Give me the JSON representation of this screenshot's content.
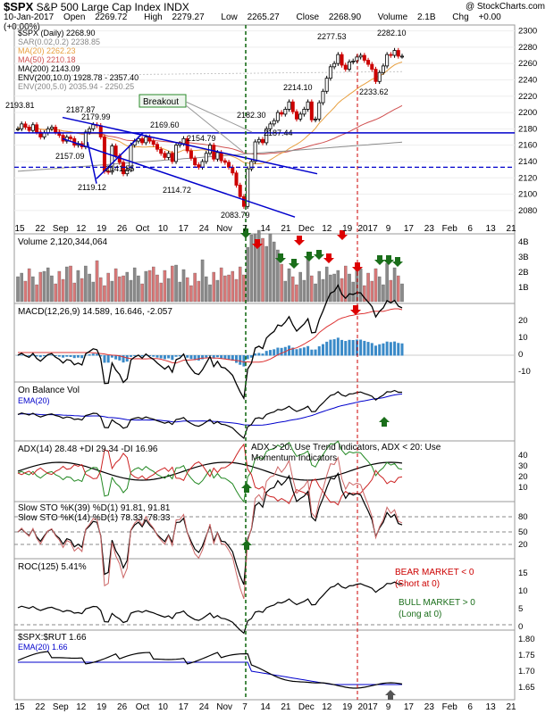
{
  "header": {
    "symbol": "$SPX",
    "name": "S&P 500 Large Cap Index INDX",
    "date": "10-Jan-2017",
    "open_label": "Open",
    "open": "2269.72",
    "high_label": "High",
    "high": "2279.27",
    "low_label": "Low",
    "low": "2265.27",
    "close_label": "Close",
    "close": "2268.90",
    "volume_label": "Volume",
    "volume": "2.1B",
    "chg_label": "Chg",
    "chg": "+0.00 (+0.00%)",
    "watermark": "@ StockCharts.com"
  },
  "colors": {
    "up": "#000000",
    "down": "#cc0000",
    "blue": "#0000cc",
    "green_arrow": "#1a6e1a",
    "red_arrow": "#dd0000",
    "volume_bar": "#d87878",
    "volume_bar_up": "#8a8a8a",
    "ma20": "#e8a040",
    "ma50": "#d05050",
    "ma200": "#8c8c8c",
    "hist": "#3a8ac8"
  },
  "x_axis_labels": [
    "15",
    "22",
    "Sep",
    "12",
    "19",
    "26",
    "Oct",
    "10",
    "17",
    "24",
    "Nov",
    "7",
    "14",
    "21",
    "Dec",
    "12",
    "19",
    "2017",
    "9",
    "17",
    "23",
    "Feb",
    "6",
    "13",
    "21"
  ],
  "panels": {
    "price": {
      "legend": [
        "$SPX (Daily) 2268.90",
        "SAR(0.02,0.2) 2238.85",
        "MA(20) 2262.23",
        "MA(50) 2210.18",
        "MA(200) 2143.09",
        "ENV(200,10.0) 1928.78 - 2357.40",
        "ENV(200,5.0) 2035.94 - 2250.25"
      ],
      "y_ticks": [
        "2300",
        "2280",
        "2260",
        "2240",
        "2220",
        "2200",
        "2180",
        "2160",
        "2140",
        "2120",
        "2100",
        "2080"
      ],
      "annotations": [
        "2193.81",
        "2187.87",
        "2179.99",
        "2169.60",
        "2157.09",
        "2141.55",
        "2119.12",
        "2154.79",
        "2114.72",
        "2083.79",
        "2182.30",
        "2187.44",
        "2214.10",
        "2277.53",
        "2233.62",
        "2282.10"
      ],
      "callout": "Breakout"
    },
    "volume": {
      "label": "Volume 2,120,344,064",
      "y_ticks": [
        "4B",
        "3B",
        "2B",
        "1B"
      ]
    },
    "macd": {
      "label": "MACD(12,26,9) 14.589, 16.646, -2.057",
      "y_ticks": [
        "20",
        "10",
        "0",
        "-10"
      ]
    },
    "obv": {
      "label": "On Balance Vol",
      "ema_label": "EMA(20)"
    },
    "adx": {
      "label": "ADX(14) 28.48 +DI 29.34 -DI 16.96",
      "note": "ADX > 20: Use Trend Indicators, ADX < 20: Use Momentum Indicators",
      "y_ticks": [
        "40",
        "30",
        "20",
        "10"
      ]
    },
    "sto": {
      "label1": "Slow STO %K(39) %D(1) 91.81, 91.81",
      "label2": "Slow STO %K(14) %D(1) 78.33, 78.33",
      "y_ticks": [
        "80",
        "50",
        "20"
      ]
    },
    "roc": {
      "label": "ROC(125) 5.41%",
      "bear": "BEAR MARKET < 0",
      "bear2": "(Short at 0)",
      "bull": "BULL MARKET > 0",
      "bull2": "(Long at 0)",
      "y_ticks": [
        "15",
        "10",
        "5",
        "0"
      ]
    },
    "ratio": {
      "label": "$SPX:$RUT 1.66",
      "ema_label": "EMA(20) 1.66",
      "y_ticks": [
        "1.80",
        "1.75",
        "1.70",
        "1.65"
      ]
    }
  },
  "chart_data": {
    "type": "line",
    "title": "$SPX S&P 500 Large Cap Index INDX",
    "ylim": [
      2070,
      2305
    ],
    "close": [
      2180,
      2186,
      2182,
      2178,
      2185,
      2176,
      2170,
      2175,
      2180,
      2182,
      2176,
      2172,
      2165,
      2170,
      2168,
      2160,
      2162,
      2158,
      2176,
      2180,
      2185,
      2184,
      2170,
      2128,
      2127,
      2159,
      2147,
      2139,
      2125,
      2130,
      2160,
      2165,
      2168,
      2163,
      2170,
      2165,
      2161,
      2155,
      2150,
      2145,
      2150,
      2140,
      2160,
      2162,
      2168,
      2153,
      2144,
      2136,
      2133,
      2140,
      2150,
      2160,
      2143,
      2151,
      2141,
      2139,
      2133,
      2126,
      2111,
      2097,
      2085,
      2131,
      2140,
      2164,
      2167,
      2163,
      2180,
      2186,
      2190,
      2200,
      2198,
      2204,
      2213,
      2201,
      2192,
      2198,
      2204,
      2213,
      2191,
      2192,
      2212,
      2226,
      2242,
      2256,
      2260,
      2271,
      2258,
      2253,
      2262,
      2263,
      2268,
      2270,
      2264,
      2259,
      2253,
      2238,
      2249,
      2257,
      2271,
      2270,
      2276,
      2269,
      2269
    ]
  }
}
